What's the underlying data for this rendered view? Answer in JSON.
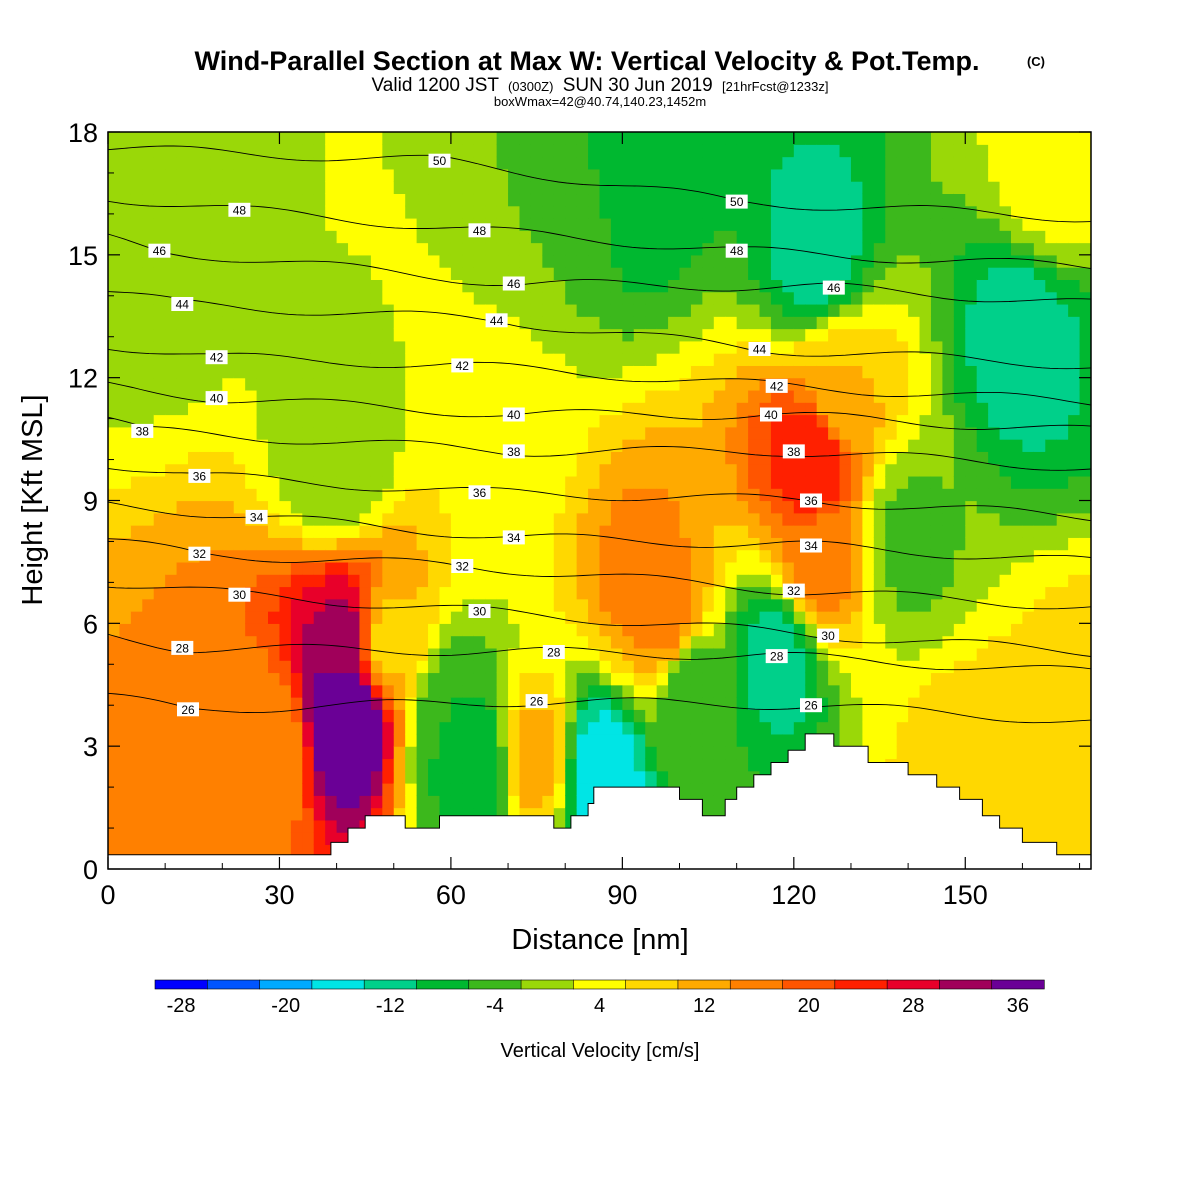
{
  "chart_data": {
    "type": "heatmap",
    "title": "Wind-Parallel Section at Max W: Vertical Velocity & Pot.Temp.",
    "copyright_mark": "(C)",
    "subtitle": {
      "valid_prefix": "Valid 1200 JST",
      "utc": "(0300Z)",
      "valid_date": "SUN 30 Jun 2019",
      "forecast": "[21hrFcst@1233z]"
    },
    "box_info": "boxWmax=42@40.74,140.23,1452m",
    "xlabel": "Distance [nm]",
    "ylabel": "Height [Kft MSL]",
    "xlim": [
      0,
      172
    ],
    "ylim": [
      0,
      18
    ],
    "x_ticks": [
      0,
      30,
      60,
      90,
      120,
      150
    ],
    "y_ticks": [
      0,
      3,
      6,
      9,
      12,
      15,
      18
    ],
    "colorbar": {
      "label": "Vertical Velocity [cm/s]",
      "levels": [
        -32,
        -28,
        -24,
        -20,
        -16,
        -12,
        -8,
        -4,
        0,
        4,
        8,
        12,
        16,
        20,
        24,
        28,
        32,
        36,
        40
      ],
      "colors": [
        "#0000ff",
        "#0055ff",
        "#00aaff",
        "#00e5e5",
        "#00d08a",
        "#00b830",
        "#3cb81c",
        "#9ad808",
        "#ffff00",
        "#ffd800",
        "#ffaa00",
        "#ff8000",
        "#ff5500",
        "#ff2000",
        "#e8002a",
        "#a0005a",
        "#6a0096"
      ],
      "tick_labels": [
        -28,
        -20,
        -12,
        -4,
        4,
        12,
        20,
        28,
        36
      ]
    },
    "w_field": [
      {
        "x": 42,
        "y": 3.8,
        "w": 42
      },
      {
        "x": 42,
        "y": 5.5,
        "w": 30
      },
      {
        "x": 28,
        "y": 3.0,
        "w": 12
      },
      {
        "x": 48,
        "y": 5.5,
        "w": 6
      },
      {
        "x": 60,
        "y": 3.5,
        "w": -8
      },
      {
        "x": 64,
        "y": 2.5,
        "w": -12
      },
      {
        "x": 75,
        "y": 2.7,
        "w": 10
      },
      {
        "x": 86,
        "y": 2.3,
        "w": -20
      },
      {
        "x": 94,
        "y": 7.0,
        "w": 14
      },
      {
        "x": 98,
        "y": 6.0,
        "w": 14
      },
      {
        "x": 102,
        "y": 4.5,
        "w": -8
      },
      {
        "x": 117,
        "y": 5.2,
        "w": -14
      },
      {
        "x": 123,
        "y": 10.0,
        "w": 24
      },
      {
        "x": 124,
        "y": 7.5,
        "w": 14
      },
      {
        "x": 128,
        "y": 11.8,
        "w": 8
      },
      {
        "x": 92,
        "y": 17.0,
        "w": -12
      },
      {
        "x": 124,
        "y": 15.0,
        "w": -14
      },
      {
        "x": 160,
        "y": 13.0,
        "w": -14
      },
      {
        "x": 170,
        "y": 3.0,
        "w": 8
      },
      {
        "x": 150,
        "y": 2.5,
        "w": 6
      },
      {
        "x": 10,
        "y": 15.5,
        "w": -3
      },
      {
        "x": 40,
        "y": 10.0,
        "w": -4
      },
      {
        "x": 140,
        "y": 8.0,
        "w": -5
      },
      {
        "x": 70,
        "y": 10.5,
        "w": 2
      },
      {
        "x": 80,
        "y": 16.0,
        "w": -4
      },
      {
        "x": 165,
        "y": 17.0,
        "w": 2
      }
    ],
    "theta_labels": [
      {
        "x": 58,
        "y": 17.3,
        "text": "50"
      },
      {
        "x": 110,
        "y": 16.3,
        "text": "50"
      },
      {
        "x": 23,
        "y": 16.1,
        "text": "48"
      },
      {
        "x": 65,
        "y": 15.6,
        "text": "48"
      },
      {
        "x": 110,
        "y": 15.1,
        "text": "48"
      },
      {
        "x": 9,
        "y": 15.1,
        "text": "46"
      },
      {
        "x": 71,
        "y": 14.3,
        "text": "46"
      },
      {
        "x": 127,
        "y": 14.2,
        "text": "46"
      },
      {
        "x": 13,
        "y": 13.8,
        "text": "44"
      },
      {
        "x": 68,
        "y": 13.4,
        "text": "44"
      },
      {
        "x": 114,
        "y": 12.7,
        "text": "44"
      },
      {
        "x": 19,
        "y": 12.5,
        "text": "42"
      },
      {
        "x": 62,
        "y": 12.3,
        "text": "42"
      },
      {
        "x": 117,
        "y": 11.8,
        "text": "42"
      },
      {
        "x": 19,
        "y": 11.5,
        "text": "40"
      },
      {
        "x": 71,
        "y": 11.1,
        "text": "40"
      },
      {
        "x": 116,
        "y": 11.1,
        "text": "40"
      },
      {
        "x": 6,
        "y": 10.7,
        "text": "38"
      },
      {
        "x": 71,
        "y": 10.2,
        "text": "38"
      },
      {
        "x": 120,
        "y": 10.2,
        "text": "38"
      },
      {
        "x": 16,
        "y": 9.6,
        "text": "36"
      },
      {
        "x": 65,
        "y": 9.2,
        "text": "36"
      },
      {
        "x": 123,
        "y": 9.0,
        "text": "36"
      },
      {
        "x": 26,
        "y": 8.6,
        "text": "34"
      },
      {
        "x": 71,
        "y": 8.1,
        "text": "34"
      },
      {
        "x": 123,
        "y": 7.9,
        "text": "34"
      },
      {
        "x": 16,
        "y": 7.7,
        "text": "32"
      },
      {
        "x": 62,
        "y": 7.4,
        "text": "32"
      },
      {
        "x": 120,
        "y": 6.8,
        "text": "32"
      },
      {
        "x": 23,
        "y": 6.7,
        "text": "30"
      },
      {
        "x": 65,
        "y": 6.3,
        "text": "30"
      },
      {
        "x": 126,
        "y": 5.7,
        "text": "30"
      },
      {
        "x": 13,
        "y": 5.4,
        "text": "28"
      },
      {
        "x": 78,
        "y": 5.3,
        "text": "28"
      },
      {
        "x": 117,
        "y": 5.2,
        "text": "28"
      },
      {
        "x": 14,
        "y": 3.9,
        "text": "26"
      },
      {
        "x": 75,
        "y": 4.1,
        "text": "26"
      },
      {
        "x": 123,
        "y": 4.0,
        "text": "26"
      }
    ],
    "terrain": [
      [
        0,
        0.35
      ],
      [
        39,
        0.35
      ],
      [
        39,
        0.65
      ],
      [
        42,
        0.65
      ],
      [
        42,
        1.0
      ],
      [
        45,
        1.0
      ],
      [
        45,
        1.3
      ],
      [
        52,
        1.3
      ],
      [
        52,
        1.0
      ],
      [
        58,
        1.0
      ],
      [
        58,
        1.3
      ],
      [
        78,
        1.3
      ],
      [
        78,
        1.0
      ],
      [
        81,
        1.0
      ],
      [
        81,
        1.3
      ],
      [
        84,
        1.3
      ],
      [
        84,
        1.6
      ],
      [
        85,
        1.6
      ],
      [
        85,
        2.0
      ],
      [
        100,
        2.0
      ],
      [
        100,
        1.7
      ],
      [
        104,
        1.7
      ],
      [
        104,
        1.3
      ],
      [
        108,
        1.3
      ],
      [
        108,
        1.7
      ],
      [
        110,
        1.7
      ],
      [
        110,
        2.0
      ],
      [
        113,
        2.0
      ],
      [
        113,
        2.3
      ],
      [
        116,
        2.3
      ],
      [
        116,
        2.6
      ],
      [
        119,
        2.6
      ],
      [
        119,
        2.9
      ],
      [
        122,
        2.9
      ],
      [
        122,
        3.3
      ],
      [
        127,
        3.3
      ],
      [
        127,
        3.0
      ],
      [
        133,
        3.0
      ],
      [
        133,
        2.6
      ],
      [
        140,
        2.6
      ],
      [
        140,
        2.3
      ],
      [
        145,
        2.3
      ],
      [
        145,
        2.0
      ],
      [
        149,
        2.0
      ],
      [
        149,
        1.7
      ],
      [
        153,
        1.7
      ],
      [
        153,
        1.3
      ],
      [
        156,
        1.3
      ],
      [
        156,
        1.0
      ],
      [
        160,
        1.0
      ],
      [
        160,
        0.65
      ],
      [
        166,
        0.65
      ],
      [
        166,
        0.35
      ],
      [
        172,
        0.35
      ]
    ]
  }
}
